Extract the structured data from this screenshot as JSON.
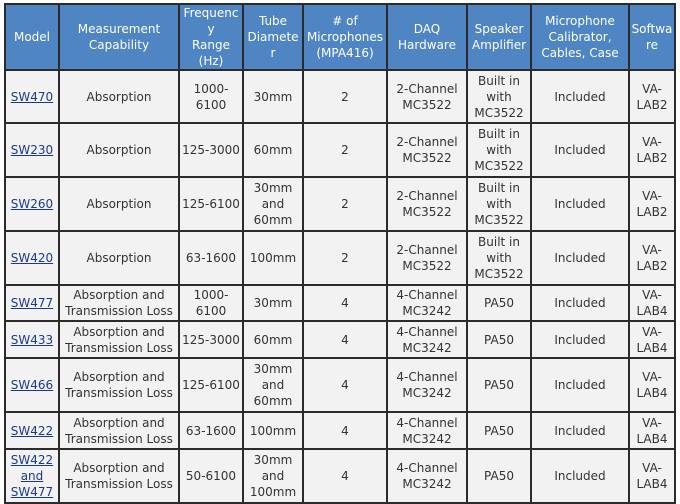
{
  "columns": [
    [
      "Model"
    ],
    [
      "Measurement",
      "Capability"
    ],
    [
      "Frequency",
      "Range (Hz)"
    ],
    [
      "Tube",
      "Diameter"
    ],
    [
      "# of",
      "Microphones",
      "(MPA416)"
    ],
    [
      "DAQ",
      "Hardware"
    ],
    [
      "Speaker",
      "Amplifier"
    ],
    [
      "Microphone",
      "Calibrator,",
      "Cables, Case"
    ],
    [
      "Software"
    ]
  ],
  "rows": [
    {
      "model": [
        "SW470"
      ],
      "cap": [
        "Absorption"
      ],
      "freq": "1000-6100",
      "tube": [
        "30mm"
      ],
      "mics": "2",
      "daq": [
        "2-Channel",
        "MC3522"
      ],
      "amp": [
        "Built in",
        "with",
        "MC3522"
      ],
      "cal": "Included",
      "sw": "VA-LAB2"
    },
    {
      "model": [
        "SW230"
      ],
      "cap": [
        "Absorption"
      ],
      "freq": "125-3000",
      "tube": [
        "60mm"
      ],
      "mics": "2",
      "daq": [
        "2-Channel",
        "MC3522"
      ],
      "amp": [
        "Built in",
        "with",
        "MC3522"
      ],
      "cal": "Included",
      "sw": "VA-LAB2"
    },
    {
      "model": [
        "SW260"
      ],
      "cap": [
        "Absorption"
      ],
      "freq": "125-6100",
      "tube": [
        "30mm",
        "and",
        "60mm"
      ],
      "mics": "2",
      "daq": [
        "2-Channel",
        "MC3522"
      ],
      "amp": [
        "Built in",
        "with",
        "MC3522"
      ],
      "cal": "Included",
      "sw": "VA-LAB2"
    },
    {
      "model": [
        "SW420"
      ],
      "cap": [
        "Absorption"
      ],
      "freq": "63-1600",
      "tube": [
        "100mm"
      ],
      "mics": "2",
      "daq": [
        "2-Channel",
        "MC3522"
      ],
      "amp": [
        "Built in",
        "with",
        "MC3522"
      ],
      "cal": "Included",
      "sw": "VA-LAB2"
    },
    {
      "model": [
        "SW477"
      ],
      "cap": [
        "Absorption and",
        "Transmission Loss"
      ],
      "freq": "1000-6100",
      "tube": [
        "30mm"
      ],
      "mics": "4",
      "daq": [
        "4-Channel",
        "MC3242"
      ],
      "amp": [
        "PA50"
      ],
      "cal": "Included",
      "sw": "VA-LAB4"
    },
    {
      "model": [
        "SW433"
      ],
      "cap": [
        "Absorption and",
        "Transmission Loss"
      ],
      "freq": "125-3000",
      "tube": [
        "60mm"
      ],
      "mics": "4",
      "daq": [
        "4-Channel",
        "MC3242"
      ],
      "amp": [
        "PA50"
      ],
      "cal": "Included",
      "sw": "VA-LAB4"
    },
    {
      "model": [
        "SW466"
      ],
      "cap": [
        "Absorption and",
        "Transmission Loss"
      ],
      "freq": "125-6100",
      "tube": [
        "30mm",
        "and",
        "60mm"
      ],
      "mics": "4",
      "daq": [
        "4-Channel",
        "MC3242"
      ],
      "amp": [
        "PA50"
      ],
      "cal": "Included",
      "sw": "VA-LAB4"
    },
    {
      "model": [
        "SW422"
      ],
      "cap": [
        "Absorption and",
        "Transmission Loss"
      ],
      "freq": "63-1600",
      "tube": [
        "100mm"
      ],
      "mics": "4",
      "daq": [
        "4-Channel",
        "MC3242"
      ],
      "amp": [
        "PA50"
      ],
      "cal": "Included",
      "sw": "VA-LAB4"
    },
    {
      "model": [
        "SW422",
        "and",
        "SW477"
      ],
      "cap": [
        "Absorption and",
        "Transmission Loss"
      ],
      "freq": "50-6100",
      "tube": [
        "30mm",
        "and",
        "100mm"
      ],
      "mics": "4",
      "daq": [
        "4-Channel",
        "MC3242"
      ],
      "amp": [
        "PA50"
      ],
      "cal": "Included",
      "sw": "VA-LAB4"
    }
  ]
}
